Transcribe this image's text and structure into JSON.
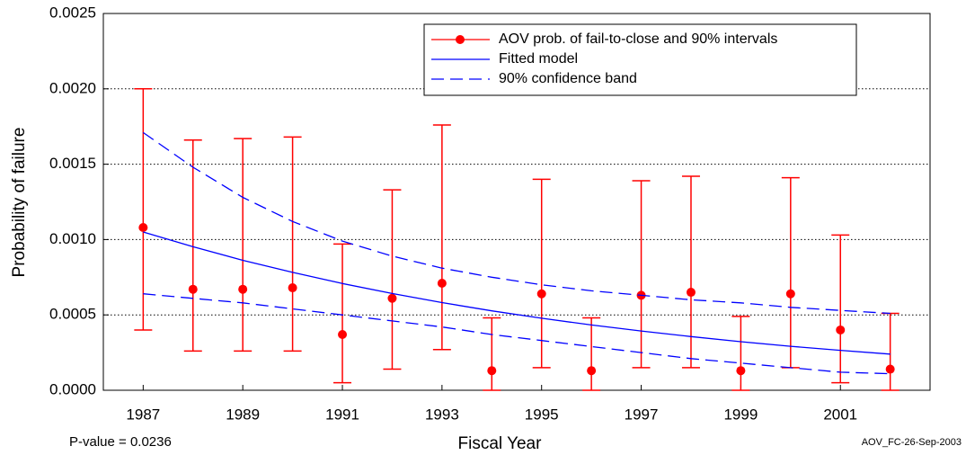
{
  "chart_data": {
    "type": "errorbar",
    "x_label": "Fiscal Year",
    "y_label": "Probability of failure",
    "annotations": [
      "P-value = 0.0236",
      "AOV_FC-26-Sep-2003"
    ],
    "x": [
      1987,
      1988,
      1989,
      1990,
      1991,
      1992,
      1993,
      1994,
      1995,
      1996,
      1997,
      1998,
      1999,
      2000,
      2001,
      2002
    ],
    "series": [
      {
        "name": "AOV prob. of fail-to-close  and 90% intervals",
        "color": "#ff0000",
        "values": [
          0.00108,
          0.00067,
          0.00067,
          0.00068,
          0.00037,
          0.00061,
          0.00071,
          0.00013,
          0.00064,
          0.00013,
          0.00063,
          0.00065,
          0.00013,
          0.00064,
          0.0004,
          0.00014
        ],
        "lower": [
          0.0004,
          0.00026,
          0.00026,
          0.00026,
          5e-05,
          0.00014,
          0.00027,
          0,
          0.00015,
          0,
          0.00015,
          0.00015,
          0,
          0.00015,
          5e-05,
          0
        ],
        "upper": [
          0.002,
          0.00166,
          0.00167,
          0.00168,
          0.00097,
          0.00133,
          0.00176,
          0.00048,
          0.0014,
          0.00048,
          0.00139,
          0.00142,
          0.00049,
          0.00141,
          0.00103,
          0.00051
        ]
      },
      {
        "name": "Fitted model",
        "color": "#0000ff",
        "values": [
          0.00105,
          0.000952,
          0.000862,
          0.000782,
          0.000708,
          0.000642,
          0.000582,
          0.000527,
          0.000478,
          0.000433,
          0.000393,
          0.000356,
          0.000322,
          0.000292,
          0.000265,
          0.00024
        ]
      },
      {
        "name": "90% confidence band",
        "color": "#0000ff",
        "upper": [
          0.00171,
          0.00148,
          0.00128,
          0.00112,
          0.00099,
          0.00089,
          0.00081,
          0.00075,
          0.0007,
          0.00066,
          0.00063,
          0.0006,
          0.00058,
          0.00055,
          0.00053,
          0.00051
        ],
        "lower": [
          0.00064,
          0.00061,
          0.00058,
          0.00054,
          0.0005,
          0.00046,
          0.00042,
          0.00037,
          0.00033,
          0.00029,
          0.00025,
          0.00021,
          0.00018,
          0.00015,
          0.00012,
          0.00011
        ]
      }
    ],
    "xlim": [
      1986.2,
      2002.8
    ],
    "xticks": [
      1987,
      1989,
      1991,
      1993,
      1995,
      1997,
      1999,
      2001
    ],
    "ylim": [
      0,
      0.0025
    ],
    "yticks": [
      {
        "value": 0,
        "label": "0.0000"
      },
      {
        "value": 0.0005,
        "label": "0.0005"
      },
      {
        "value": 0.001,
        "label": "0.0010"
      },
      {
        "value": 0.0015,
        "label": "0.0015"
      },
      {
        "value": 0.002,
        "label": "0.0020"
      },
      {
        "value": 0.0025,
        "label": "0.0025"
      }
    ],
    "grid": true,
    "legend": "top-right"
  }
}
